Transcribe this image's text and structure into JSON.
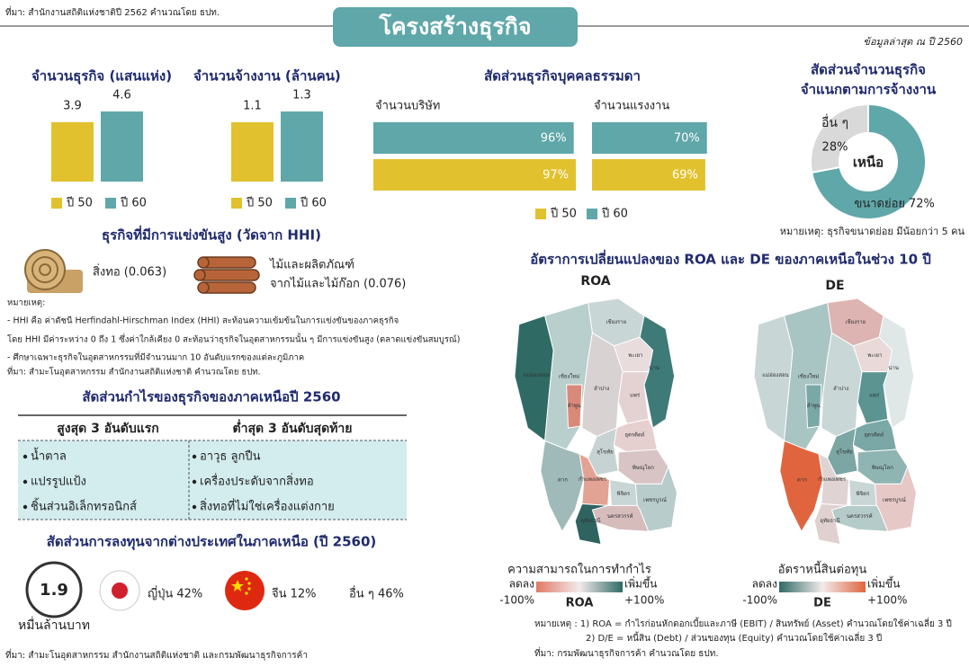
{
  "source_top": "ที่มา: สำนักงานสถิติแห่งชาติปี 2562 คำนวณโดย ธปท.",
  "title": "โครงสร้างธุรกิจ",
  "latest": "ข้อมูลล่าสุด ณ ปี 2560",
  "chart_data": [
    {
      "type": "bar",
      "title": "จำนวนธุรกิจ (แสนแห่ง)",
      "series": [
        {
          "name": "ปี 50",
          "color": "#e2c12e",
          "values": [
            3.9
          ]
        },
        {
          "name": "ปี 60",
          "color": "#5fa7a9",
          "values": [
            4.6
          ]
        }
      ]
    },
    {
      "type": "bar",
      "title": "จำนวนจ้างงาน (ล้านคน)",
      "series": [
        {
          "name": "ปี 50",
          "color": "#e2c12e",
          "values": [
            1.1
          ]
        },
        {
          "name": "ปี 60",
          "color": "#5fa7a9",
          "values": [
            1.3
          ]
        }
      ]
    },
    {
      "type": "hbar",
      "title": "สัดส่วนธุรกิจบุคคลธรรมดา",
      "categories": [
        "จำนวนบริษัท",
        "จำนวนแรงงาน"
      ],
      "series": [
        {
          "name": "ปี 50",
          "color": "#e2c12e",
          "values": [
            97,
            69
          ],
          "value_labels": [
            "97%",
            "69%"
          ]
        },
        {
          "name": "ปี 60",
          "color": "#5fa7a9",
          "values": [
            96,
            70
          ],
          "value_labels": [
            "96%",
            "70%"
          ]
        }
      ]
    },
    {
      "type": "donut",
      "title": [
        "สัดส่วนจำนวนธุรกิจ",
        "จำแนกตามการจ้างงาน"
      ],
      "categories": [
        "อื่น ๆ",
        "ขนาดย่อย"
      ],
      "values": [
        28,
        72
      ],
      "value_labels": [
        "28%",
        "72%"
      ],
      "colors": [
        "#d9d9d9",
        "#5fa7a9"
      ],
      "center_label": "เหนือ",
      "note": "หมายเหตุ: ธุรกิจขนาดย่อย มีน้อยกว่า 5 คน"
    }
  ],
  "hhi": {
    "title": "ธุรกิจที่มีการแข่งขันสูง (วัดจาก HHI)",
    "items": [
      [
        "สิ่งทอ (0.063)"
      ],
      [
        "ไม้และผลิตภัณฑ์",
        "จากไม้และไม้ก๊อก (0.076)"
      ]
    ],
    "notes": [
      "หมายเหตุ:",
      "- HHI คือ ค่าดัชนี Herfindahl-Hirschman Index (HHI) สะท้อนความเข้มข้นในการแข่งขันของภาคธุรกิจ",
      "โดย HHI มีค่าระหว่าง 0 ถึง 1 ซึ่งค่าใกล้เคียง 0 สะท้อนว่าธุรกิจในอุตสาหกรรมนั้น ๆ มีการแข่งขันสูง (ตลาดแข่งขันสมบูรณ์)",
      "- ศึกษาเฉพาะธุรกิจในอุตสาหกรรมที่มีจำนวนมาก 10 อันดับแรกของแต่ละภูมิภาค",
      "ที่มา: สำมะโนอุตสาหกรรม สำนักงานสถิติแห่งชาติ คำนวณโดย ธปท."
    ]
  },
  "profit": {
    "title": "สัดส่วนกำไรของธุรกิจของภาคเหนือปี 2560",
    "headers": [
      "สูงสุด 3 อันดับแรก",
      "ต่ำสุด 3 อันดับสุดท้าย"
    ],
    "rows": [
      [
        "น้ำตาล",
        "อาวุธ ลูกปืน"
      ],
      [
        "แปรรูปแป้ง",
        "เครื่องประดับจากสิ่งทอ"
      ],
      [
        "ชิ้นส่วนอิเล็กทรอนิกส์",
        "สิ่งทอที่ไม่ใช่เครื่องแต่งกาย"
      ]
    ]
  },
  "fdi": {
    "title": "สัดส่วนการลงทุนจากต่างประเทศในภาคเหนือ (ปี 2560)",
    "total": "1.9",
    "unit": "หมื่นล้านบาท",
    "items": [
      "ญี่ปุ่น 42%",
      "จีน 12%",
      "อื่น ๆ 46%"
    ]
  },
  "source_bottom": "ที่มา: สำมะโนอุตสาหกรรม สำนักงานสถิติแห่งชาติ และกรมพัฒนาธุรกิจการค้า",
  "maps": {
    "title": "อัตราการเปลี่ยนแปลงของ ROA และ DE ของภาคเหนือในช่วง 10 ปี",
    "panels": [
      {
        "label": "ROA",
        "provinces": [
          {
            "name": "เชียงราย",
            "color": "#c9d6d6"
          },
          {
            "name": "พะเยา",
            "color": "#e8dcdc"
          },
          {
            "name": "น่าน",
            "color": "#3d7a78"
          },
          {
            "name": "แม่ฮ่องสอน",
            "color": "#2f6a65"
          },
          {
            "name": "เชียงใหม่",
            "color": "#b8cfcd"
          },
          {
            "name": "ลำพูน",
            "color": "#d9897a"
          },
          {
            "name": "ลำปาง",
            "color": "#d8d2d2"
          },
          {
            "name": "แพร่",
            "color": "#e4d2d2"
          },
          {
            "name": "อุตรดิตถ์",
            "color": "#e6cfcf"
          },
          {
            "name": "ตาก",
            "color": "#9fbab8"
          },
          {
            "name": "สุโขทัย",
            "color": "#c7d3d2"
          },
          {
            "name": "พิษณุโลก",
            "color": "#d8c4c4"
          },
          {
            "name": "กำแพงเพชร",
            "color": "#e3a394"
          },
          {
            "name": "พิจิตร",
            "color": "#c8d6d5"
          },
          {
            "name": "เพชรบูรณ์",
            "color": "#b7cccb"
          },
          {
            "name": "นครสวรรค์",
            "color": "#d7bcbc"
          },
          {
            "name": "อุทัยธานี",
            "color": "#2e6360"
          }
        ],
        "legend": {
          "title": "ความสามารถในการทำกำไร",
          "low": "ลดลง",
          "high": "เพิ่มขึ้น",
          "min": "-100%",
          "max": "+100%",
          "name": "ROA",
          "colors": [
            "#e07a66",
            "#f2ebeb",
            "#2f6a65"
          ]
        }
      },
      {
        "label": "DE",
        "provinces": [
          {
            "name": "เชียงราย",
            "color": "#ddb4b2"
          },
          {
            "name": "พะเยา",
            "color": "#e9d9d9"
          },
          {
            "name": "น่าน",
            "color": "#dfe7e7"
          },
          {
            "name": "แม่ฮ่องสอน",
            "color": "#c8d6d6"
          },
          {
            "name": "เชียงใหม่",
            "color": "#a8c4c3"
          },
          {
            "name": "ลำพูน",
            "color": "#7aa8a6"
          },
          {
            "name": "ลำปาง",
            "color": "#c9d8d7"
          },
          {
            "name": "แพร่",
            "color": "#5b9491"
          },
          {
            "name": "อุตรดิตถ์",
            "color": "#7aa8a6"
          },
          {
            "name": "ตาก",
            "color": "#e0653f"
          },
          {
            "name": "สุโขทัย",
            "color": "#7ba6a4"
          },
          {
            "name": "พิษณุโลก",
            "color": "#8fb5b3"
          },
          {
            "name": "กำแพงเพชร",
            "color": "#dfd3d3"
          },
          {
            "name": "พิจิตร",
            "color": "#c9d6d6"
          },
          {
            "name": "เพชรบูรณ์",
            "color": "#e6c9c7"
          },
          {
            "name": "นครสวรรค์",
            "color": "#b5cbc9"
          },
          {
            "name": "อุทัยธานี",
            "color": "#e0d0d0"
          }
        ],
        "legend": {
          "title": "อัตราหนี้สินต่อทุน",
          "low": "ลดลง",
          "high": "เพิ่มขึ้น",
          "min": "-100%",
          "max": "+100%",
          "name": "DE",
          "colors": [
            "#2f6a65",
            "#f2ebeb",
            "#e0653f"
          ]
        }
      }
    ],
    "notes": [
      "หมายเหตุ : 1) ROA = กำไรก่อนหักดอกเบี้ยและภาษี (EBIT) / สินทรัพย์ (Asset) คำนวณโดยใช้ค่าเฉลี่ย 3 ปี",
      "2) D/E = หนี้สิน (Debt) / ส่วนของทุน (Equity) คำนวณโดยใช้ค่าเฉลี่ย 3 ปี",
      "ที่มา: กรมพัฒนาธุรกิจการค้า คำนวณโดย ธปท."
    ]
  }
}
